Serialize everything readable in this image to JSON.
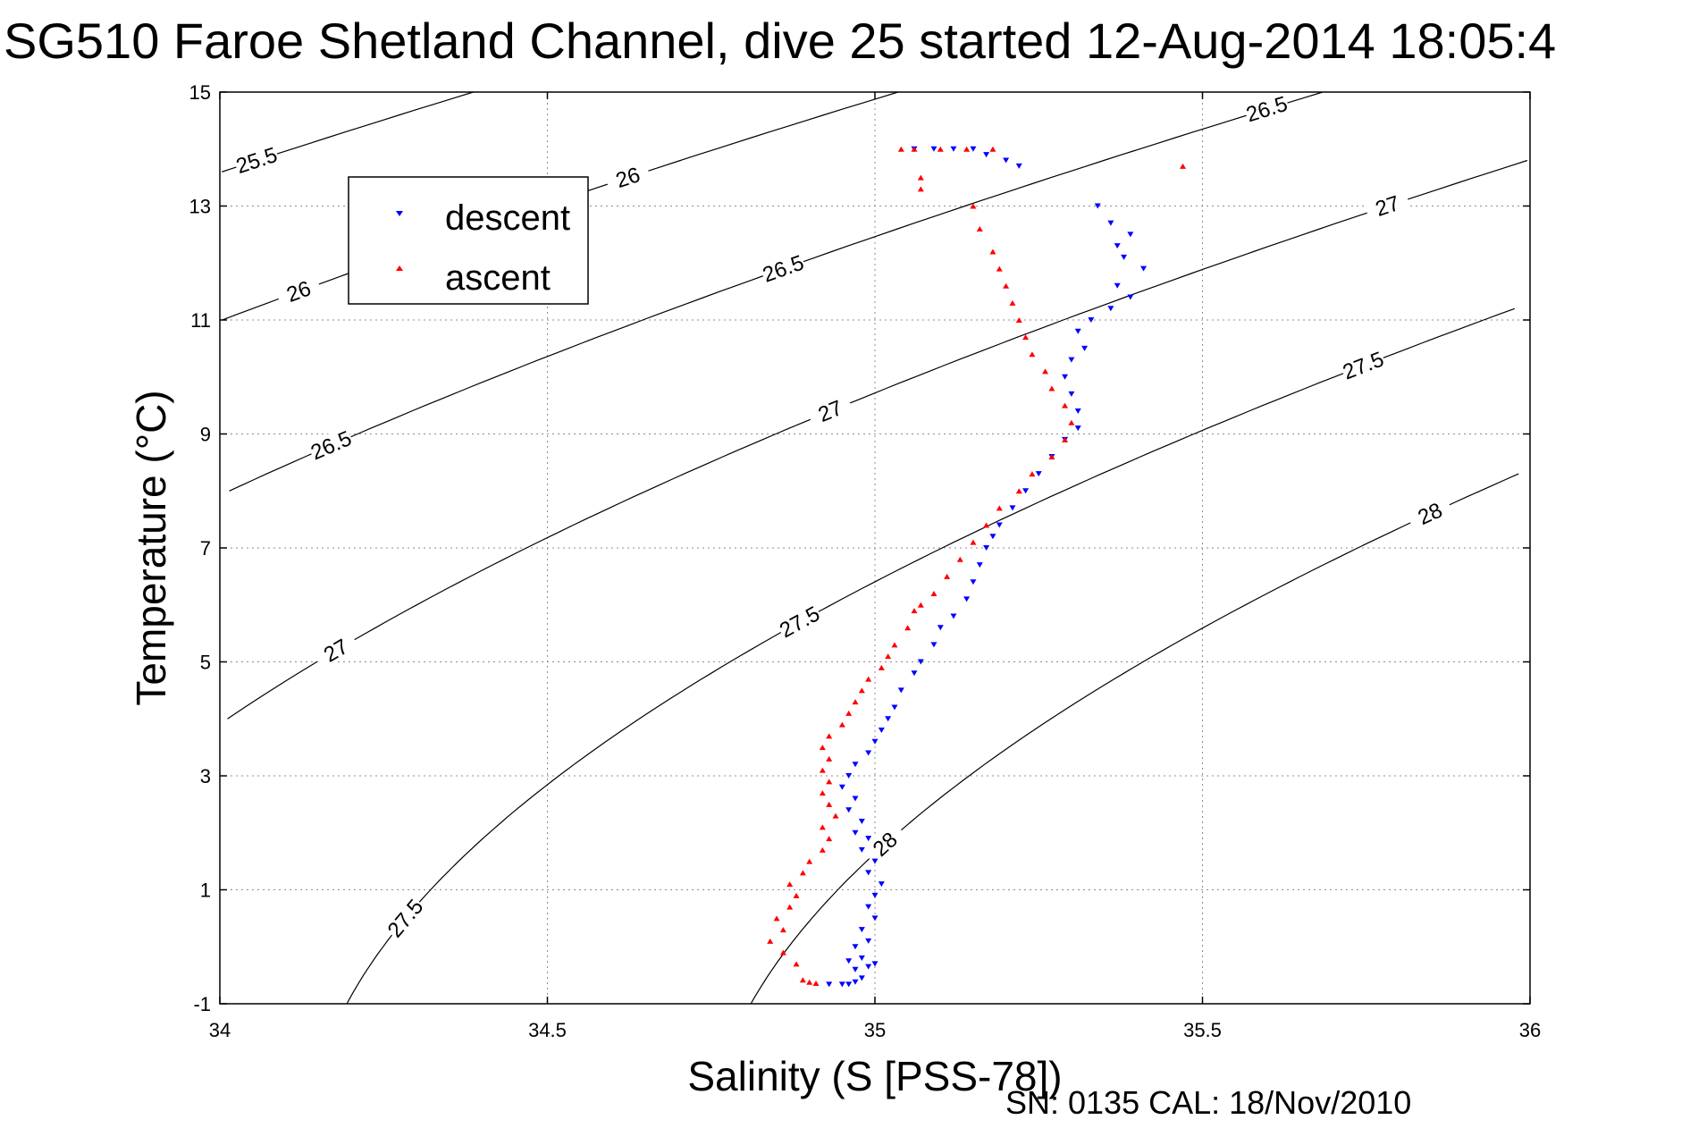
{
  "title": "SG510 Faroe Shetland Channel, dive 25 started 12-Aug-2014 18:05:4",
  "footer_text": "SN: 0135  CAL: 18/Nov/2010",
  "chart_data": {
    "type": "scatter",
    "title": "SG510 Faroe Shetland Channel, dive 25 started 12-Aug-2014 18:05:4",
    "xlabel": "Salinity (S [PSS-78])",
    "ylabel": "Temperature (°C)",
    "xlim": [
      34,
      36
    ],
    "ylim": [
      -1,
      15
    ],
    "xticks": [
      34,
      34.5,
      35,
      35.5,
      36
    ],
    "xtick_labels": [
      "34",
      "34.5",
      "35",
      "35.5",
      "36"
    ],
    "yticks": [
      -1,
      1,
      3,
      5,
      7,
      9,
      11,
      13,
      15
    ],
    "ytick_labels": [
      "-1",
      "1",
      "3",
      "5",
      "7",
      "9",
      "11",
      "13",
      "15"
    ],
    "grid": true,
    "legend_position": "top-left",
    "series": [
      {
        "name": "descent",
        "marker": "triangle-down",
        "color": "#0000ff",
        "points": [
          [
            34.93,
            -0.66
          ],
          [
            34.95,
            -0.66
          ],
          [
            34.96,
            -0.66
          ],
          [
            34.97,
            -0.62
          ],
          [
            34.98,
            -0.55
          ],
          [
            34.97,
            -0.4
          ],
          [
            34.99,
            -0.35
          ],
          [
            35.0,
            -0.3
          ],
          [
            34.96,
            -0.25
          ],
          [
            34.98,
            -0.2
          ],
          [
            34.97,
            0.0
          ],
          [
            34.99,
            0.1
          ],
          [
            34.98,
            0.3
          ],
          [
            35.0,
            0.5
          ],
          [
            34.99,
            0.7
          ],
          [
            35.0,
            0.9
          ],
          [
            35.01,
            1.1
          ],
          [
            34.99,
            1.3
          ],
          [
            35.0,
            1.5
          ],
          [
            34.98,
            1.7
          ],
          [
            34.99,
            1.9
          ],
          [
            34.97,
            2.0
          ],
          [
            34.98,
            2.2
          ],
          [
            34.96,
            2.4
          ],
          [
            34.97,
            2.6
          ],
          [
            34.95,
            2.8
          ],
          [
            34.96,
            3.0
          ],
          [
            34.97,
            3.2
          ],
          [
            34.99,
            3.4
          ],
          [
            35.0,
            3.6
          ],
          [
            35.01,
            3.8
          ],
          [
            35.02,
            4.0
          ],
          [
            35.03,
            4.2
          ],
          [
            35.04,
            4.5
          ],
          [
            35.06,
            4.8
          ],
          [
            35.07,
            5.0
          ],
          [
            35.09,
            5.3
          ],
          [
            35.1,
            5.6
          ],
          [
            35.12,
            5.8
          ],
          [
            35.14,
            6.1
          ],
          [
            35.15,
            6.4
          ],
          [
            35.16,
            6.7
          ],
          [
            35.17,
            7.0
          ],
          [
            35.18,
            7.2
          ],
          [
            35.19,
            7.4
          ],
          [
            35.21,
            7.7
          ],
          [
            35.23,
            8.0
          ],
          [
            35.25,
            8.3
          ],
          [
            35.27,
            8.6
          ],
          [
            35.29,
            8.9
          ],
          [
            35.31,
            9.1
          ],
          [
            35.31,
            9.4
          ],
          [
            35.3,
            9.7
          ],
          [
            35.29,
            10.0
          ],
          [
            35.3,
            10.3
          ],
          [
            35.32,
            10.5
          ],
          [
            35.31,
            10.8
          ],
          [
            35.33,
            11.0
          ],
          [
            35.36,
            11.2
          ],
          [
            35.39,
            11.4
          ],
          [
            35.37,
            11.6
          ],
          [
            35.41,
            11.9
          ],
          [
            35.38,
            12.1
          ],
          [
            35.37,
            12.3
          ],
          [
            35.39,
            12.5
          ],
          [
            35.36,
            12.7
          ],
          [
            35.34,
            13.0
          ],
          [
            35.15,
            14.0
          ],
          [
            35.12,
            14.0
          ],
          [
            35.09,
            14.0
          ],
          [
            35.06,
            14.0
          ],
          [
            35.17,
            13.9
          ],
          [
            35.22,
            13.7
          ],
          [
            35.2,
            13.8
          ]
        ]
      },
      {
        "name": "ascent",
        "marker": "triangle-up",
        "color": "#ff0000",
        "points": [
          [
            34.9,
            -0.62
          ],
          [
            34.91,
            -0.64
          ],
          [
            34.89,
            -0.58
          ],
          [
            34.88,
            -0.3
          ],
          [
            34.86,
            -0.1
          ],
          [
            34.84,
            0.1
          ],
          [
            34.86,
            0.3
          ],
          [
            34.85,
            0.5
          ],
          [
            34.87,
            0.7
          ],
          [
            34.88,
            0.9
          ],
          [
            34.87,
            1.1
          ],
          [
            34.89,
            1.3
          ],
          [
            34.9,
            1.5
          ],
          [
            34.92,
            1.7
          ],
          [
            34.93,
            1.9
          ],
          [
            34.92,
            2.1
          ],
          [
            34.94,
            2.3
          ],
          [
            34.93,
            2.5
          ],
          [
            34.92,
            2.7
          ],
          [
            34.93,
            2.9
          ],
          [
            34.92,
            3.1
          ],
          [
            34.93,
            3.3
          ],
          [
            34.92,
            3.5
          ],
          [
            34.93,
            3.7
          ],
          [
            34.95,
            3.9
          ],
          [
            34.96,
            4.1
          ],
          [
            34.97,
            4.3
          ],
          [
            34.98,
            4.5
          ],
          [
            34.99,
            4.7
          ],
          [
            35.01,
            4.9
          ],
          [
            35.02,
            5.1
          ],
          [
            35.03,
            5.3
          ],
          [
            35.05,
            5.6
          ],
          [
            35.06,
            5.9
          ],
          [
            35.07,
            6.0
          ],
          [
            35.09,
            6.2
          ],
          [
            35.11,
            6.5
          ],
          [
            35.13,
            6.8
          ],
          [
            35.15,
            7.1
          ],
          [
            35.17,
            7.4
          ],
          [
            35.19,
            7.7
          ],
          [
            35.22,
            8.0
          ],
          [
            35.24,
            8.3
          ],
          [
            35.27,
            8.6
          ],
          [
            35.29,
            8.9
          ],
          [
            35.3,
            9.2
          ],
          [
            35.29,
            9.5
          ],
          [
            35.27,
            9.8
          ],
          [
            35.26,
            10.1
          ],
          [
            35.24,
            10.4
          ],
          [
            35.23,
            10.7
          ],
          [
            35.22,
            11.0
          ],
          [
            35.21,
            11.3
          ],
          [
            35.2,
            11.6
          ],
          [
            35.19,
            11.9
          ],
          [
            35.18,
            12.2
          ],
          [
            35.16,
            12.6
          ],
          [
            35.15,
            13.0
          ],
          [
            35.07,
            13.3
          ],
          [
            35.07,
            13.5
          ],
          [
            35.06,
            14.0
          ],
          [
            35.04,
            14.0
          ],
          [
            35.1,
            14.0
          ],
          [
            35.14,
            14.0
          ],
          [
            35.18,
            14.0
          ],
          [
            35.47,
            13.7
          ]
        ]
      }
    ],
    "density_contours": [
      {
        "value": 25.5,
        "label": "25.5"
      },
      {
        "value": 26,
        "label": "26"
      },
      {
        "value": 26.5,
        "label": "26.5"
      },
      {
        "value": 27,
        "label": "27"
      },
      {
        "value": 27.5,
        "label": "27.5"
      },
      {
        "value": 28,
        "label": "28"
      }
    ]
  }
}
